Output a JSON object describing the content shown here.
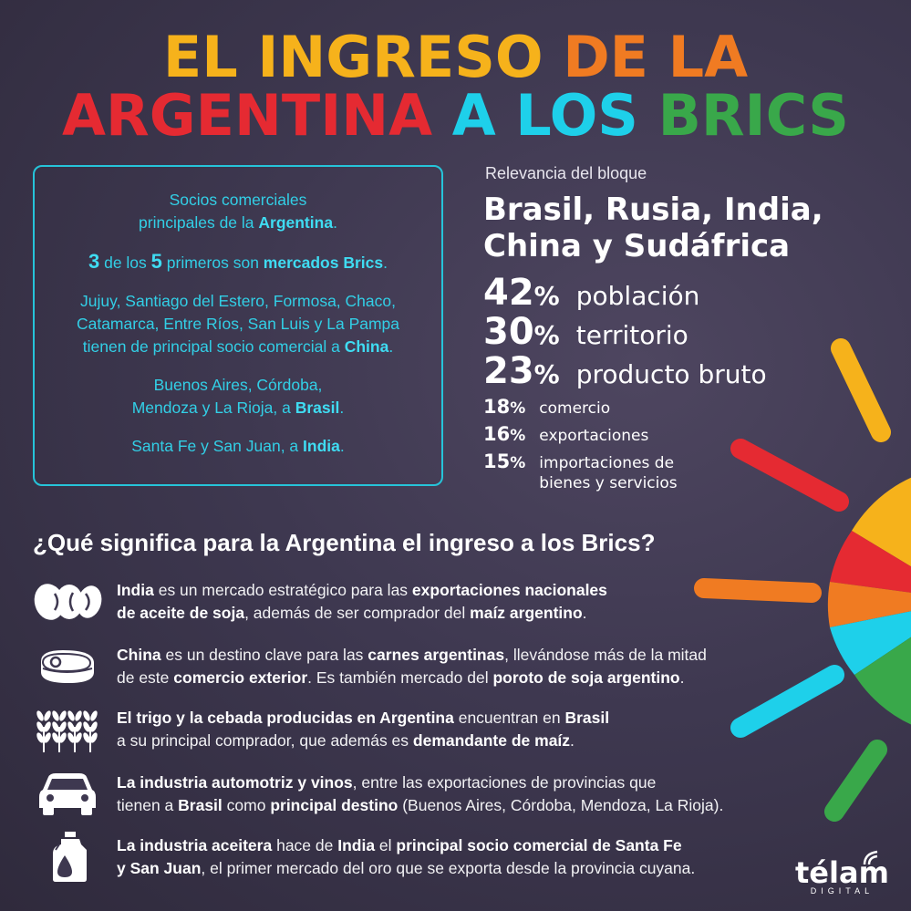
{
  "title": {
    "line1_a": "EL INGRESO",
    "line1_b": "DE LA",
    "line2_a": "ARGENTINA",
    "line2_b": "A LOS",
    "line2_c": "BRICS"
  },
  "partners_box": {
    "p1_a": "Socios comerciales",
    "p1_b": "principales de la ",
    "p1_c": "Argentina",
    "p1_d": ".",
    "p2_a": "3",
    "p2_b": " de los ",
    "p2_c": "5",
    "p2_d": " primeros son ",
    "p2_e": "mercados Brics",
    "p2_f": ".",
    "p3_a": "Jujuy, Santiago del Estero, Formosa, Chaco,",
    "p3_b": "Catamarca, Entre Ríos, San Luis y La Pampa",
    "p3_c": "tienen de principal socio comercial a ",
    "p3_d": "China",
    "p3_e": ".",
    "p4_a": "Buenos Aires, Córdoba,",
    "p4_b": "Mendoza y La Rioja, a ",
    "p4_c": "Brasil",
    "p4_d": ".",
    "p5_a": "Santa Fe y San Juan, a ",
    "p5_b": "India",
    "p5_c": "."
  },
  "relevance": {
    "label": "Relevancia del bloque",
    "title_1": "Brasil, Rusia, India,",
    "title_2": "China y Sudáfrica",
    "stats": [
      {
        "num": "42",
        "sym": "%",
        "label": "población"
      },
      {
        "num": "30",
        "sym": "%",
        "label": "territorio"
      },
      {
        "num": "23",
        "sym": "%",
        "label": "producto bruto"
      },
      {
        "num": "18",
        "sym": "%",
        "label": "comercio"
      },
      {
        "num": "16",
        "sym": "%",
        "label": "exportaciones"
      },
      {
        "num": "15",
        "sym": "%",
        "label_1": "importaciones de",
        "label_2": "bienes y servicios"
      }
    ]
  },
  "question": "¿Qué significa para la Argentina el ingreso a los Brics?",
  "items": [
    {
      "icon": "soybean-icon",
      "l1_a": "India",
      "l1_b": " es un mercado estratégico para las ",
      "l1_c": "exportaciones nacionales",
      "l2_a": "de aceite de soja",
      "l2_b": ", además de ser comprador del ",
      "l2_c": "maíz argentino",
      "l2_d": "."
    },
    {
      "icon": "meat-icon",
      "l1_a": "China",
      "l1_b": " es un destino clave para las ",
      "l1_c": "carnes argentinas",
      "l1_d": ", llevándose más de la mitad",
      "l2_a": "de este ",
      "l2_b": "comercio exterior",
      "l2_c": ". Es también mercado del ",
      "l2_d": "poroto de soja argentino",
      "l2_e": "."
    },
    {
      "icon": "wheat-icon",
      "l1_a": "El trigo y la cebada producidas en Argentina",
      "l1_b": " encuentran en ",
      "l1_c": "Brasil",
      "l2_a": "a su principal comprador, que además es ",
      "l2_b": "demandante de maíz",
      "l2_c": "."
    },
    {
      "icon": "car-icon",
      "l1_a": "La industria automotriz y vinos",
      "l1_b": ", entre las exportaciones de provincias que",
      "l2_a": "tienen a ",
      "l2_b": "Brasil",
      "l2_c": " como ",
      "l2_d": "principal destino",
      "l2_e": " (Buenos Aires, Córdoba, Mendoza, La Rioja)."
    },
    {
      "icon": "oil-bottle-icon",
      "l1_a": "La industria aceitera",
      "l1_b": " hace de ",
      "l1_c": "India",
      "l1_d": " el ",
      "l1_e": "principal socio comercial de Santa Fe",
      "l2_a": "y San Juan",
      "l2_b": ", el primer mercado del oro que se exporta desde la provincia cuyana."
    }
  ],
  "logo": {
    "name": "télam",
    "sub": "DIGITAL"
  },
  "colors": {
    "yellow": "#f6b21b",
    "orange": "#f07b22",
    "red": "#e52a32",
    "cyan": "#1ed0ea",
    "green": "#39a84a",
    "background": "#3e3850"
  }
}
